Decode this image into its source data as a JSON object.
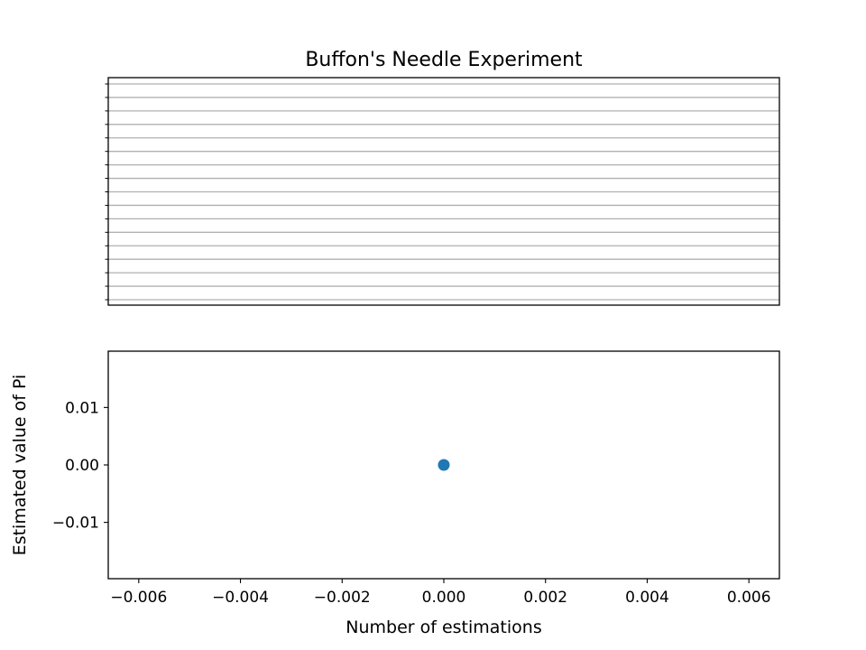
{
  "chart_data": [
    {
      "type": "line",
      "title": "Buffon's Needle Experiment",
      "xlabel": "",
      "ylabel": "",
      "lines": {
        "count": 17,
        "color": "#b0b0b0"
      },
      "axes_ticks": "hidden",
      "grid": false,
      "legend": "none"
    },
    {
      "type": "scatter",
      "title": "",
      "xlabel": "Number of estimations",
      "ylabel": "Estimated value of Pi",
      "x": [
        0.0
      ],
      "y": [
        0.0
      ],
      "xlim": [
        -0.0066,
        0.0066
      ],
      "ylim": [
        -0.0198,
        0.0198
      ],
      "xticks": [
        -0.006,
        -0.004,
        -0.002,
        0.0,
        0.002,
        0.004,
        0.006
      ],
      "xtick_labels": [
        "−0.006",
        "−0.004",
        "−0.002",
        "0.000",
        "0.002",
        "0.004",
        "0.006"
      ],
      "yticks": [
        -0.01,
        0.0,
        0.01
      ],
      "ytick_labels": [
        "−0.01",
        "0.00",
        "0.01"
      ],
      "marker_color": "#1f77b4",
      "grid": false,
      "legend": "none"
    }
  ]
}
